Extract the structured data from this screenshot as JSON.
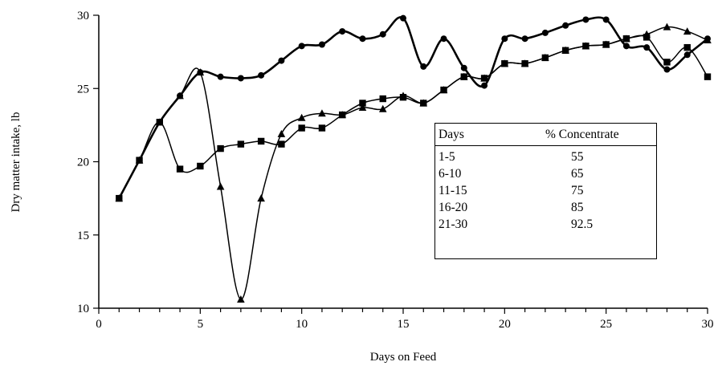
{
  "chart_data": {
    "type": "line",
    "xlabel": "Days on Feed",
    "ylabel": "Dry matter intake, lb",
    "xlim": [
      0,
      30
    ],
    "ylim": [
      10,
      30
    ],
    "xticks": [
      0,
      5,
      10,
      15,
      20,
      25,
      30
    ],
    "yticks": [
      10,
      15,
      20,
      25,
      30
    ],
    "grid": false,
    "series": [
      {
        "marker": "circle",
        "x": [
          1,
          2,
          3,
          4,
          5,
          6,
          7,
          8,
          9,
          10,
          11,
          12,
          13,
          14,
          15,
          16,
          17,
          18,
          19,
          20,
          21,
          22,
          23,
          24,
          25,
          26,
          27,
          28,
          29,
          30
        ],
        "y": [
          17.5,
          20.1,
          22.7,
          24.5,
          26.1,
          25.8,
          25.7,
          25.9,
          26.9,
          27.9,
          28.0,
          28.9,
          28.4,
          28.7,
          29.8,
          26.5,
          28.4,
          26.4,
          25.2,
          28.4,
          28.4,
          28.8,
          29.3,
          29.7,
          29.7,
          27.9,
          27.8,
          26.3,
          27.3,
          28.4
        ]
      },
      {
        "marker": "triangle",
        "x": [
          1,
          2,
          3,
          4,
          5,
          6,
          7,
          8,
          9,
          10,
          11,
          12,
          13,
          14,
          15,
          16,
          17,
          18,
          19,
          20,
          21,
          22,
          23,
          24,
          25,
          26,
          27,
          28,
          29,
          30
        ],
        "y": [
          17.5,
          20.1,
          22.7,
          24.5,
          26.1,
          18.3,
          10.6,
          17.5,
          21.9,
          23.0,
          23.3,
          23.2,
          23.7,
          23.6,
          24.5,
          24.0,
          24.9,
          25.8,
          25.7,
          26.7,
          26.7,
          27.1,
          27.6,
          27.9,
          28.0,
          28.4,
          28.7,
          29.2,
          28.9,
          28.3
        ]
      },
      {
        "marker": "square",
        "x": [
          1,
          2,
          3,
          4,
          5,
          6,
          7,
          8,
          9,
          10,
          11,
          12,
          13,
          14,
          15,
          16,
          17,
          18,
          19,
          20,
          21,
          22,
          23,
          24,
          25,
          26,
          27,
          28,
          29,
          30
        ],
        "y": [
          17.5,
          20.1,
          22.7,
          19.5,
          19.7,
          20.9,
          21.2,
          21.4,
          21.2,
          22.3,
          22.3,
          23.2,
          24.0,
          24.3,
          24.4,
          24.0,
          24.9,
          25.8,
          25.7,
          26.7,
          26.7,
          27.1,
          27.6,
          27.9,
          28.0,
          28.4,
          28.5,
          26.8,
          27.8,
          25.8
        ]
      }
    ]
  },
  "legend_table": {
    "headers": [
      "Days",
      "% Concentrate"
    ],
    "rows": [
      [
        "1-5",
        "55"
      ],
      [
        "6-10",
        "65"
      ],
      [
        "11-15",
        "75"
      ],
      [
        "16-20",
        "85"
      ],
      [
        "21-30",
        "92.5"
      ]
    ]
  }
}
